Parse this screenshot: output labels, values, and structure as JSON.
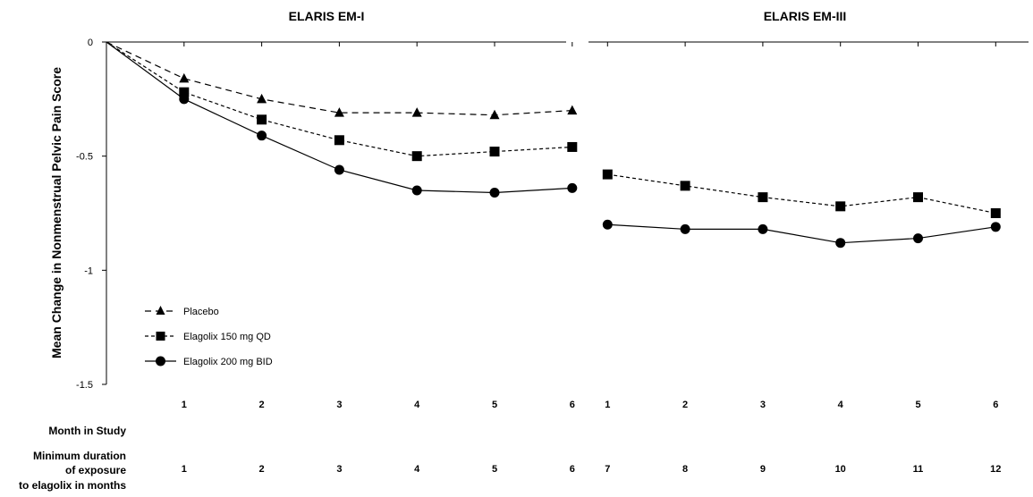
{
  "chart_data": {
    "type": "line",
    "ylabel": "Mean Change in Nonmenstrual Pelvic Pain Score",
    "ylim": [
      -1.5,
      0
    ],
    "y_ticks": [
      {
        "value": 0,
        "label": "0"
      },
      {
        "value": -0.5,
        "label": "-0.5"
      },
      {
        "value": -1,
        "label": "-1"
      },
      {
        "value": -1.5,
        "label": "-1.5"
      }
    ],
    "row_labels": {
      "month": "Month in Study",
      "duration_line1": "Minimum duration",
      "duration_line2": "of exposure",
      "duration_line3": "to elagolix in months"
    },
    "legend_position": "bottom-left (in first panel)",
    "grid": false,
    "panels": [
      {
        "title": "ELARIS EM-I",
        "month_ticks": [
          "1",
          "2",
          "3",
          "4",
          "5",
          "6"
        ],
        "duration_ticks": [
          "1",
          "2",
          "3",
          "4",
          "5",
          "6"
        ],
        "series": [
          {
            "name": "Placebo",
            "marker": "triangle",
            "line": "dashed",
            "x": [
              0,
              1,
              2,
              3,
              4,
              5,
              6
            ],
            "values": [
              0,
              -0.16,
              -0.25,
              -0.31,
              -0.31,
              -0.32,
              -0.3
            ]
          },
          {
            "name": "Elagolix 150 mg QD",
            "marker": "square",
            "line": "short-dashed",
            "x": [
              0,
              1,
              2,
              3,
              4,
              5,
              6
            ],
            "values": [
              0,
              -0.22,
              -0.34,
              -0.43,
              -0.5,
              -0.48,
              -0.46
            ]
          },
          {
            "name": "Elagolix 200 mg BID",
            "marker": "circle",
            "line": "solid",
            "x": [
              0,
              1,
              2,
              3,
              4,
              5,
              6
            ],
            "values": [
              0,
              -0.25,
              -0.41,
              -0.56,
              -0.65,
              -0.66,
              -0.64
            ]
          }
        ]
      },
      {
        "title": "ELARIS EM-III",
        "month_ticks": [
          "1",
          "2",
          "3",
          "4",
          "5",
          "6"
        ],
        "duration_ticks": [
          "7",
          "8",
          "9",
          "10",
          "11",
          "12"
        ],
        "series": [
          {
            "name": "Elagolix 150 mg QD",
            "marker": "square",
            "line": "short-dashed",
            "x": [
              1,
              2,
              3,
              4,
              5,
              6
            ],
            "values": [
              -0.58,
              -0.63,
              -0.68,
              -0.72,
              -0.68,
              -0.75
            ]
          },
          {
            "name": "Elagolix 200 mg BID",
            "marker": "circle",
            "line": "solid",
            "x": [
              1,
              2,
              3,
              4,
              5,
              6
            ],
            "values": [
              -0.8,
              -0.82,
              -0.82,
              -0.88,
              -0.86,
              -0.81
            ]
          }
        ]
      }
    ]
  }
}
